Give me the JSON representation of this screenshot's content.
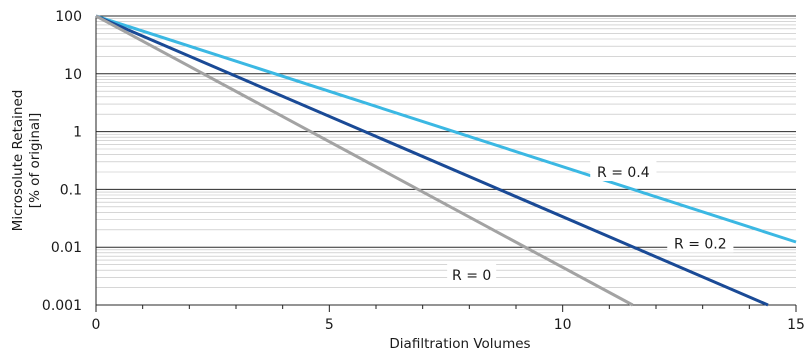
{
  "chart_data": {
    "type": "line",
    "title": "",
    "xlabel": "Diafiltration Volumes",
    "ylabel_lines": [
      "Microsolute Retained",
      "[% of original]"
    ],
    "xlim": [
      0,
      15
    ],
    "ylim": [
      0.001,
      100
    ],
    "yscale": "log",
    "grid": true,
    "legend": "none",
    "x_ticks": [
      {
        "value": 0,
        "label": "0"
      },
      {
        "value": 5,
        "label": "5"
      },
      {
        "value": 10,
        "label": "10"
      },
      {
        "value": 15,
        "label": "15"
      }
    ],
    "y_ticks": [
      {
        "value": 100,
        "label": "100"
      },
      {
        "value": 10,
        "label": "10"
      },
      {
        "value": 1,
        "label": "1"
      },
      {
        "value": 0.1,
        "label": "0.1"
      },
      {
        "value": 0.01,
        "label": "0.01"
      },
      {
        "value": 0.001,
        "label": "0.001"
      }
    ],
    "series": [
      {
        "key": "r-0.4",
        "label": "R = 0.4",
        "color": "#3bb8e3",
        "x": [
          0,
          15
        ],
        "y": [
          100,
          0.0123
        ]
      },
      {
        "key": "r-0.2",
        "label": "R = 0.2",
        "color": "#1a4a96",
        "x": [
          0,
          14.4
        ],
        "y": [
          100,
          0.001
        ]
      },
      {
        "key": "r-0",
        "label": "R = 0",
        "color": "#a3a3a3",
        "x": [
          0,
          11.5
        ],
        "y": [
          100,
          0.001
        ]
      }
    ],
    "label_anchor_points": [
      {
        "series": "r-0.4",
        "x": 11.3,
        "y": 0.2
      },
      {
        "series": "r-0.2",
        "x": 12.95,
        "y": 0.0115
      },
      {
        "series": "r-0",
        "x": 8.05,
        "y": 0.0033
      }
    ]
  }
}
